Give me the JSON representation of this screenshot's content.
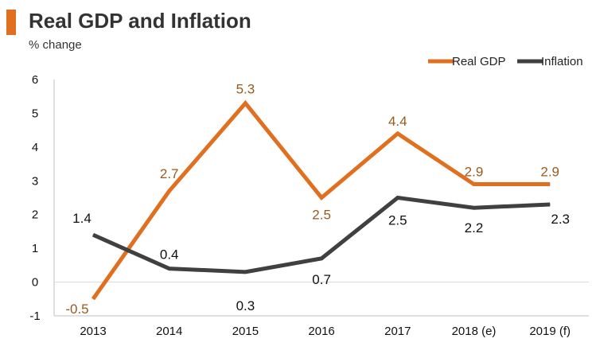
{
  "chart_data": {
    "type": "line",
    "title": "Real GDP and Inflation",
    "subtitle": "% change",
    "xlabel": "",
    "ylabel": "",
    "categories": [
      "2013",
      "2014",
      "2015",
      "2016",
      "2017",
      "2018 (e)",
      "2019 (f)"
    ],
    "ylim": [
      -1,
      6
    ],
    "yticks": [
      6,
      5,
      4,
      3,
      2,
      1,
      0,
      -1
    ],
    "legend_position": "top-right",
    "series": [
      {
        "name": "Real GDP",
        "color": "#e07020",
        "label_color": "#9a5a1e",
        "values": [
          -0.5,
          2.7,
          5.3,
          2.5,
          4.4,
          2.9,
          2.9
        ],
        "labels": [
          "-0.5",
          "2.7",
          "5.3",
          "2.5",
          "4.4",
          "2.9",
          "2.9"
        ]
      },
      {
        "name": "Inflation",
        "color": "#404040",
        "label_color": "#111111",
        "values": [
          1.4,
          0.4,
          0.3,
          0.7,
          2.5,
          2.2,
          2.3
        ],
        "labels": [
          "1.4",
          "0.4",
          "0.3",
          "0.7",
          "2.5",
          "2.2",
          "2.3"
        ]
      }
    ]
  }
}
